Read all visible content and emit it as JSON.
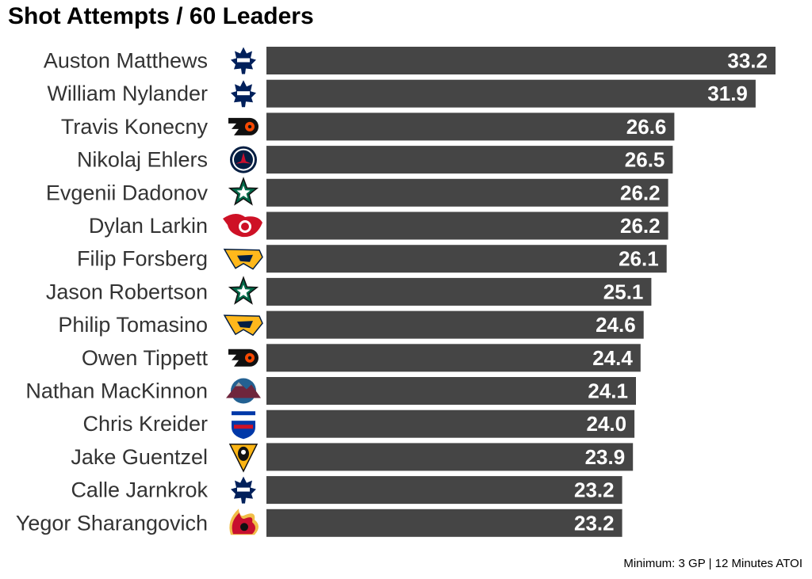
{
  "chart_data": {
    "type": "bar",
    "orientation": "horizontal",
    "title": "Shot Attempts / 60 Leaders",
    "caption": "Minimum: 3 GP | 12 Minutes ATOI",
    "bar_color": "#454545",
    "value_label_color": "#ffffff",
    "categories": [
      "Auston Matthews",
      "William Nylander",
      "Travis Konecny",
      "Nikolaj Ehlers",
      "Evgenii Dadonov",
      "Dylan Larkin",
      "Filip Forsberg",
      "Jason Robertson",
      "Philip Tomasino",
      "Owen Tippett",
      "Nathan MacKinnon",
      "Chris Kreider",
      "Jake Guentzel",
      "Calle Jarnkrok",
      "Yegor Sharangovich"
    ],
    "values": [
      33.2,
      31.9,
      26.6,
      26.5,
      26.2,
      26.2,
      26.1,
      25.1,
      24.6,
      24.4,
      24.1,
      24.0,
      23.9,
      23.2,
      23.2
    ],
    "value_labels": [
      "33.2",
      "31.9",
      "26.6",
      "26.5",
      "26.2",
      "26.2",
      "26.1",
      "25.1",
      "24.6",
      "24.4",
      "24.1",
      "24.0",
      "23.9",
      "23.2",
      "23.2"
    ],
    "team_logos": [
      "maple-leafs-logo-icon",
      "maple-leafs-logo-icon",
      "flyers-logo-icon",
      "jets-logo-icon",
      "stars-logo-icon",
      "red-wings-logo-icon",
      "predators-logo-icon",
      "stars-logo-icon",
      "predators-logo-icon",
      "flyers-logo-icon",
      "avalanche-logo-icon",
      "rangers-logo-icon",
      "penguins-logo-icon",
      "maple-leafs-logo-icon",
      "flames-logo-icon"
    ],
    "xlim": [
      0,
      33.9
    ],
    "grid": false,
    "legend": "none"
  }
}
